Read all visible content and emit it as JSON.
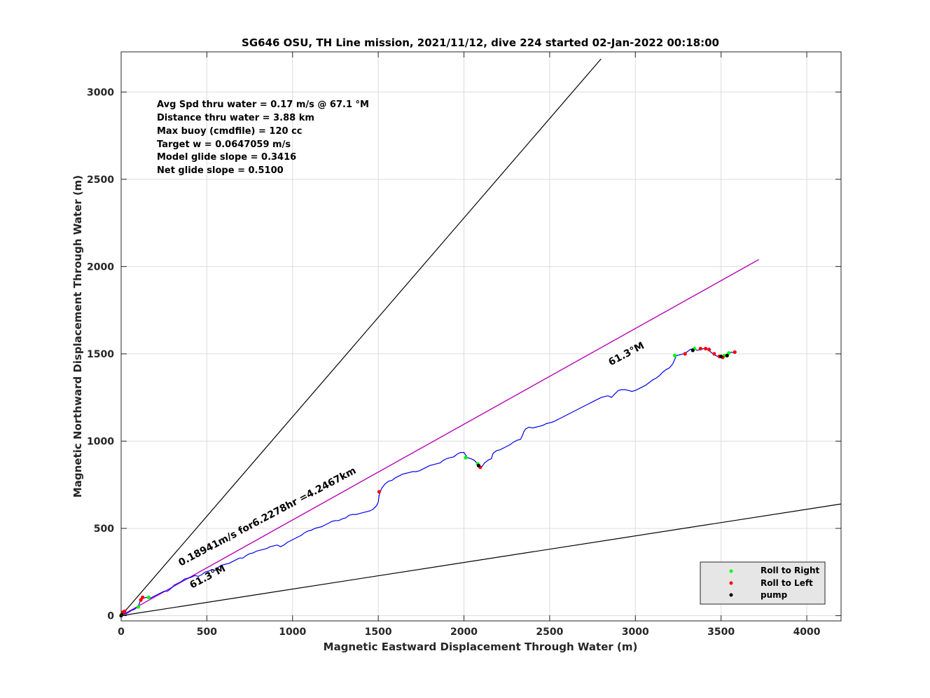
{
  "chart_data": {
    "type": "line",
    "title": "SG646 OSU, TH Line mission, 2021/11/12, dive 224 started 02-Jan-2022 00:18:00",
    "xlabel": "Magnetic Eastward Displacement Through Water (m)",
    "ylabel": "Magnetic Northward Displacement Through Water (m)",
    "xlim": [
      0,
      4200
    ],
    "ylim": [
      -30,
      3230
    ],
    "xticks": [
      0,
      500,
      1000,
      1500,
      2000,
      2500,
      3000,
      3500,
      4000
    ],
    "yticks": [
      0,
      500,
      1000,
      1500,
      2000,
      2500,
      3000
    ],
    "grid": true,
    "info_lines": [
      "Avg Spd thru water  =  0.17 m/s @  67.1  °M",
      "Distance thru water =  3.88 km",
      "Max buoy (cmdfile)  = 120 cc",
      "Target w                    = 0.0647059 m/s",
      "Model glide slope    = 0.3416",
      "Net glide slope        = 0.5100"
    ],
    "annotations": {
      "heading_near": "61.3°M",
      "heading_far": "61.3°M",
      "drift": "0.18941m/s for6.2278hr =4.2467km"
    },
    "reference_lines": [
      {
        "from": [
          0,
          0
        ],
        "to": [
          2800,
          3190
        ],
        "color": "#000000"
      },
      {
        "from": [
          0,
          0
        ],
        "to": [
          3720,
          2040
        ],
        "color": "#000000"
      },
      {
        "from": [
          0,
          0
        ],
        "to": [
          4200,
          640
        ],
        "color": "#000000"
      },
      {
        "from": [
          0,
          0
        ],
        "to": [
          3720,
          2040
        ],
        "color": "#cc00cc"
      }
    ],
    "track": {
      "color": "#0000ee",
      "points": [
        [
          0,
          0
        ],
        [
          15,
          10
        ],
        [
          30,
          12
        ],
        [
          45,
          20
        ],
        [
          60,
          30
        ],
        [
          75,
          35
        ],
        [
          90,
          45
        ],
        [
          100,
          55
        ],
        [
          110,
          80
        ],
        [
          120,
          95
        ],
        [
          130,
          100
        ],
        [
          150,
          105
        ],
        [
          170,
          100
        ],
        [
          190,
          110
        ],
        [
          210,
          120
        ],
        [
          230,
          130
        ],
        [
          250,
          140
        ],
        [
          270,
          140
        ],
        [
          290,
          155
        ],
        [
          310,
          175
        ],
        [
          330,
          185
        ],
        [
          350,
          195
        ],
        [
          370,
          210
        ],
        [
          390,
          215
        ],
        [
          410,
          220
        ],
        [
          430,
          230
        ],
        [
          450,
          225
        ],
        [
          470,
          235
        ],
        [
          490,
          250
        ],
        [
          510,
          255
        ],
        [
          530,
          265
        ],
        [
          550,
          260
        ],
        [
          570,
          280
        ],
        [
          590,
          290
        ],
        [
          610,
          295
        ],
        [
          630,
          300
        ],
        [
          650,
          310
        ],
        [
          670,
          320
        ],
        [
          690,
          330
        ],
        [
          710,
          330
        ],
        [
          730,
          345
        ],
        [
          750,
          355
        ],
        [
          770,
          360
        ],
        [
          790,
          370
        ],
        [
          810,
          375
        ],
        [
          830,
          380
        ],
        [
          850,
          385
        ],
        [
          870,
          395
        ],
        [
          890,
          400
        ],
        [
          910,
          405
        ],
        [
          930,
          395
        ],
        [
          950,
          405
        ],
        [
          970,
          420
        ],
        [
          990,
          430
        ],
        [
          1010,
          440
        ],
        [
          1030,
          450
        ],
        [
          1050,
          460
        ],
        [
          1070,
          475
        ],
        [
          1090,
          485
        ],
        [
          1110,
          490
        ],
        [
          1130,
          500
        ],
        [
          1150,
          505
        ],
        [
          1170,
          510
        ],
        [
          1190,
          520
        ],
        [
          1210,
          530
        ],
        [
          1230,
          540
        ],
        [
          1250,
          545
        ],
        [
          1270,
          545
        ],
        [
          1290,
          555
        ],
        [
          1310,
          560
        ],
        [
          1330,
          575
        ],
        [
          1350,
          580
        ],
        [
          1370,
          580
        ],
        [
          1390,
          585
        ],
        [
          1410,
          590
        ],
        [
          1430,
          595
        ],
        [
          1450,
          600
        ],
        [
          1470,
          610
        ],
        [
          1490,
          630
        ],
        [
          1500,
          650
        ],
        [
          1505,
          690
        ],
        [
          1510,
          705
        ],
        [
          1520,
          730
        ],
        [
          1540,
          755
        ],
        [
          1560,
          770
        ],
        [
          1580,
          775
        ],
        [
          1600,
          790
        ],
        [
          1620,
          800
        ],
        [
          1640,
          810
        ],
        [
          1660,
          815
        ],
        [
          1680,
          820
        ],
        [
          1700,
          825
        ],
        [
          1720,
          825
        ],
        [
          1740,
          830
        ],
        [
          1760,
          840
        ],
        [
          1780,
          850
        ],
        [
          1800,
          860
        ],
        [
          1820,
          865
        ],
        [
          1840,
          870
        ],
        [
          1860,
          875
        ],
        [
          1880,
          890
        ],
        [
          1900,
          900
        ],
        [
          1920,
          905
        ],
        [
          1940,
          910
        ],
        [
          1960,
          925
        ],
        [
          1980,
          935
        ],
        [
          2000,
          935
        ],
        [
          2020,
          905
        ],
        [
          2040,
          900
        ],
        [
          2060,
          890
        ],
        [
          2070,
          880
        ],
        [
          2080,
          865
        ],
        [
          2090,
          855
        ],
        [
          2100,
          850
        ],
        [
          2110,
          860
        ],
        [
          2120,
          875
        ],
        [
          2140,
          890
        ],
        [
          2160,
          900
        ],
        [
          2170,
          930
        ],
        [
          2190,
          945
        ],
        [
          2210,
          950
        ],
        [
          2230,
          960
        ],
        [
          2250,
          970
        ],
        [
          2270,
          980
        ],
        [
          2290,
          995
        ],
        [
          2310,
          1005
        ],
        [
          2330,
          1010
        ],
        [
          2340,
          1030
        ],
        [
          2350,
          1055
        ],
        [
          2360,
          1070
        ],
        [
          2380,
          1080
        ],
        [
          2400,
          1075
        ],
        [
          2420,
          1080
        ],
        [
          2440,
          1085
        ],
        [
          2460,
          1090
        ],
        [
          2480,
          1100
        ],
        [
          2500,
          1105
        ],
        [
          2520,
          1110
        ],
        [
          2540,
          1120
        ],
        [
          2560,
          1130
        ],
        [
          2580,
          1140
        ],
        [
          2600,
          1150
        ],
        [
          2620,
          1160
        ],
        [
          2640,
          1170
        ],
        [
          2660,
          1180
        ],
        [
          2680,
          1190
        ],
        [
          2700,
          1200
        ],
        [
          2720,
          1210
        ],
        [
          2740,
          1220
        ],
        [
          2760,
          1230
        ],
        [
          2780,
          1240
        ],
        [
          2800,
          1250
        ],
        [
          2820,
          1255
        ],
        [
          2840,
          1260
        ],
        [
          2860,
          1250
        ],
        [
          2880,
          1270
        ],
        [
          2900,
          1290
        ],
        [
          2920,
          1295
        ],
        [
          2940,
          1295
        ],
        [
          2960,
          1290
        ],
        [
          2980,
          1285
        ],
        [
          3000,
          1290
        ],
        [
          3020,
          1300
        ],
        [
          3040,
          1310
        ],
        [
          3060,
          1320
        ],
        [
          3080,
          1335
        ],
        [
          3100,
          1350
        ],
        [
          3120,
          1360
        ],
        [
          3140,
          1375
        ],
        [
          3160,
          1395
        ],
        [
          3180,
          1410
        ],
        [
          3200,
          1420
        ],
        [
          3220,
          1445
        ],
        [
          3230,
          1470
        ],
        [
          3240,
          1490
        ],
        [
          3260,
          1495
        ],
        [
          3280,
          1500
        ],
        [
          3300,
          1510
        ],
        [
          3320,
          1525
        ],
        [
          3340,
          1530
        ],
        [
          3360,
          1520
        ],
        [
          3380,
          1525
        ],
        [
          3400,
          1530
        ],
        [
          3420,
          1525
        ],
        [
          3440,
          1510
        ],
        [
          3460,
          1495
        ],
        [
          3480,
          1485
        ],
        [
          3500,
          1480
        ],
        [
          3520,
          1485
        ],
        [
          3540,
          1500
        ],
        [
          3560,
          1510
        ],
        [
          3580,
          1505
        ]
      ]
    },
    "events": [
      {
        "type": "Roll to Right",
        "color": "#00ff00",
        "points": [
          [
            5,
            8
          ],
          [
            100,
            50
          ],
          [
            160,
            105
          ],
          [
            2010,
            905
          ],
          [
            2080,
            870
          ],
          [
            3230,
            1490
          ],
          [
            3345,
            1530
          ],
          [
            3520,
            1490
          ],
          [
            3545,
            1505
          ]
        ]
      },
      {
        "type": "Roll to Left",
        "color": "#ff0000",
        "points": [
          [
            10,
            20
          ],
          [
            20,
            25
          ],
          [
            115,
            90
          ],
          [
            125,
            105
          ],
          [
            1505,
            710
          ],
          [
            2095,
            850
          ],
          [
            3290,
            1500
          ],
          [
            3380,
            1530
          ],
          [
            3410,
            1530
          ],
          [
            3430,
            1525
          ],
          [
            3460,
            1500
          ],
          [
            3490,
            1485
          ],
          [
            3510,
            1480
          ],
          [
            3580,
            1510
          ]
        ]
      },
      {
        "type": "pump",
        "color": "#000000",
        "points": [
          [
            0,
            0
          ],
          [
            3,
            5
          ],
          [
            2085,
            860
          ],
          [
            3335,
            1520
          ],
          [
            3500,
            1485
          ],
          [
            3535,
            1490
          ]
        ]
      }
    ],
    "legend": {
      "placement": "bottom-right",
      "entries": [
        {
          "label": "Roll to Right",
          "color": "#00ff00"
        },
        {
          "label": "Roll to Left",
          "color": "#ff0000"
        },
        {
          "label": "pump",
          "color": "#000000"
        }
      ]
    }
  }
}
